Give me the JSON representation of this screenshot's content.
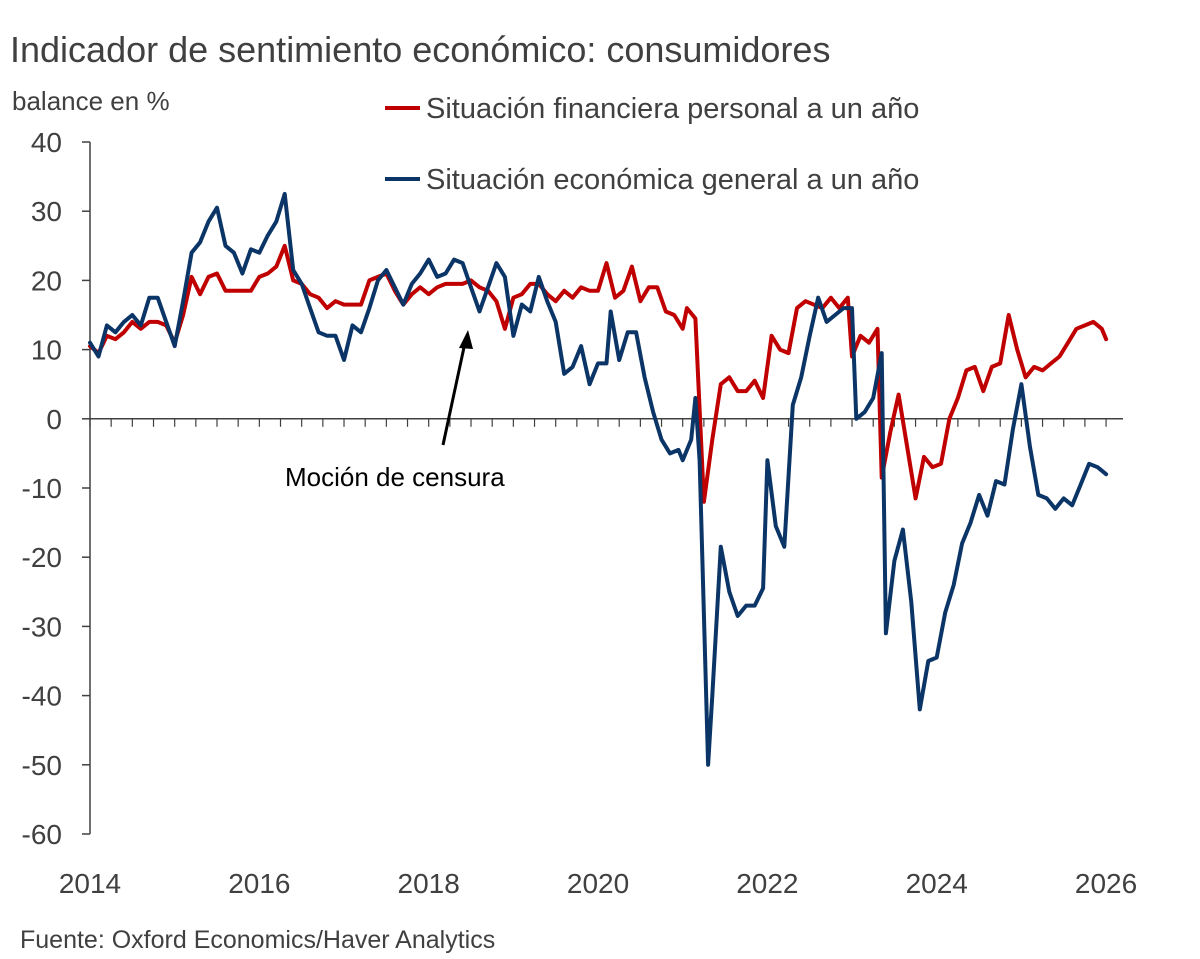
{
  "colors": {
    "series_red": "#c00000",
    "series_blue": "#0b3566",
    "axis": "#404040",
    "text": "#404040",
    "annotation": "#000000"
  },
  "chart_data": {
    "type": "line",
    "title": "Indicador de sentimiento económico: consumidores",
    "ylabel": "balance en %",
    "xlabel": "",
    "source": "Fuente: Oxford Economics/Haver Analytics",
    "ylim": [
      -60,
      40
    ],
    "yticks": [
      40,
      30,
      20,
      10,
      0,
      -10,
      -20,
      -30,
      -40,
      -50,
      -60
    ],
    "xlim": [
      2014,
      2026.2
    ],
    "xticks": [
      2014,
      2016,
      2018,
      2020,
      2022,
      2024,
      2026
    ],
    "legend_position": "top",
    "annotation": {
      "text": "Moción de censura",
      "x": 2018.4,
      "y": 12
    },
    "series": [
      {
        "name": "Situación financiera personal a un año",
        "color": "#c00000",
        "points": [
          [
            2014.0,
            10.5
          ],
          [
            2014.1,
            9.5
          ],
          [
            2014.2,
            12
          ],
          [
            2014.3,
            11.5
          ],
          [
            2014.4,
            12.5
          ],
          [
            2014.5,
            14
          ],
          [
            2014.6,
            13
          ],
          [
            2014.7,
            14
          ],
          [
            2014.8,
            14
          ],
          [
            2014.9,
            13.5
          ],
          [
            2015.0,
            11
          ],
          [
            2015.1,
            15
          ],
          [
            2015.2,
            20.5
          ],
          [
            2015.3,
            18
          ],
          [
            2015.4,
            20.5
          ],
          [
            2015.5,
            21
          ],
          [
            2015.6,
            18.5
          ],
          [
            2015.7,
            18.5
          ],
          [
            2015.8,
            18.5
          ],
          [
            2015.9,
            18.5
          ],
          [
            2016.0,
            20.5
          ],
          [
            2016.1,
            21
          ],
          [
            2016.2,
            22
          ],
          [
            2016.3,
            25
          ],
          [
            2016.4,
            20
          ],
          [
            2016.5,
            19.5
          ],
          [
            2016.6,
            18
          ],
          [
            2016.7,
            17.5
          ],
          [
            2016.8,
            16
          ],
          [
            2016.9,
            17
          ],
          [
            2017.0,
            16.5
          ],
          [
            2017.1,
            16.5
          ],
          [
            2017.2,
            16.5
          ],
          [
            2017.3,
            20
          ],
          [
            2017.4,
            20.5
          ],
          [
            2017.5,
            21
          ],
          [
            2017.6,
            18.5
          ],
          [
            2017.7,
            16.5
          ],
          [
            2017.8,
            18
          ],
          [
            2017.9,
            19
          ],
          [
            2018.0,
            18
          ],
          [
            2018.1,
            19
          ],
          [
            2018.2,
            19.5
          ],
          [
            2018.3,
            19.5
          ],
          [
            2018.4,
            19.5
          ],
          [
            2018.5,
            20
          ],
          [
            2018.6,
            19
          ],
          [
            2018.7,
            18.5
          ],
          [
            2018.8,
            17
          ],
          [
            2018.9,
            13
          ],
          [
            2019.0,
            17.5
          ],
          [
            2019.1,
            18
          ],
          [
            2019.2,
            19.5
          ],
          [
            2019.3,
            19.5
          ],
          [
            2019.4,
            18
          ],
          [
            2019.5,
            17
          ],
          [
            2019.6,
            18.5
          ],
          [
            2019.7,
            17.5
          ],
          [
            2019.8,
            19
          ],
          [
            2019.9,
            18.5
          ],
          [
            2020.0,
            18.5
          ],
          [
            2020.1,
            22.5
          ],
          [
            2020.2,
            17.5
          ],
          [
            2020.3,
            18.5
          ],
          [
            2020.4,
            22
          ],
          [
            2020.5,
            17
          ],
          [
            2020.6,
            19
          ],
          [
            2020.7,
            19
          ],
          [
            2020.8,
            15.5
          ],
          [
            2020.9,
            15
          ],
          [
            2021.0,
            13
          ],
          [
            2021.05,
            16
          ],
          [
            2021.15,
            14.5
          ],
          [
            2021.25,
            -12
          ],
          [
            2021.35,
            -3
          ],
          [
            2021.45,
            5
          ],
          [
            2021.55,
            6
          ],
          [
            2021.65,
            4
          ],
          [
            2021.75,
            4
          ],
          [
            2021.85,
            5.5
          ],
          [
            2021.95,
            3
          ],
          [
            2022.05,
            12
          ],
          [
            2022.15,
            10
          ],
          [
            2022.25,
            9.5
          ],
          [
            2022.35,
            16
          ],
          [
            2022.45,
            17
          ],
          [
            2022.55,
            16.5
          ],
          [
            2022.65,
            16
          ],
          [
            2022.75,
            17.5
          ],
          [
            2022.85,
            16
          ],
          [
            2022.95,
            17.5
          ],
          [
            2023.0,
            9
          ],
          [
            2023.1,
            12
          ],
          [
            2023.2,
            11
          ],
          [
            2023.3,
            13
          ],
          [
            2023.35,
            -8.5
          ],
          [
            2023.45,
            -2
          ],
          [
            2023.55,
            3.5
          ],
          [
            2023.65,
            -4
          ],
          [
            2023.75,
            -11.5
          ],
          [
            2023.85,
            -5.5
          ],
          [
            2023.95,
            -7
          ],
          [
            2024.05,
            -6.5
          ],
          [
            2024.15,
            0
          ],
          [
            2024.25,
            3
          ],
          [
            2024.35,
            7
          ],
          [
            2024.45,
            7.5
          ],
          [
            2024.55,
            4
          ],
          [
            2024.65,
            7.5
          ],
          [
            2024.75,
            8
          ],
          [
            2024.85,
            15
          ],
          [
            2024.95,
            10
          ],
          [
            2025.05,
            6
          ],
          [
            2025.15,
            7.5
          ],
          [
            2025.25,
            7
          ],
          [
            2025.35,
            8
          ],
          [
            2025.45,
            9
          ],
          [
            2025.55,
            11
          ],
          [
            2025.65,
            13
          ],
          [
            2025.75,
            13.5
          ],
          [
            2025.85,
            14
          ],
          [
            2025.95,
            13
          ],
          [
            2026.0,
            11.5
          ]
        ]
      },
      {
        "name": "Situación económica general a un año",
        "color": "#0b3566",
        "points": [
          [
            2014.0,
            11
          ],
          [
            2014.1,
            9
          ],
          [
            2014.2,
            13.5
          ],
          [
            2014.3,
            12.5
          ],
          [
            2014.4,
            14
          ],
          [
            2014.5,
            15
          ],
          [
            2014.6,
            13.5
          ],
          [
            2014.7,
            17.5
          ],
          [
            2014.8,
            17.5
          ],
          [
            2014.9,
            14
          ],
          [
            2015.0,
            10.5
          ],
          [
            2015.1,
            17
          ],
          [
            2015.2,
            24
          ],
          [
            2015.3,
            25.5
          ],
          [
            2015.4,
            28.5
          ],
          [
            2015.5,
            30.5
          ],
          [
            2015.6,
            25
          ],
          [
            2015.7,
            24
          ],
          [
            2015.8,
            21
          ],
          [
            2015.9,
            24.5
          ],
          [
            2016.0,
            24
          ],
          [
            2016.1,
            26.5
          ],
          [
            2016.2,
            28.5
          ],
          [
            2016.3,
            32.5
          ],
          [
            2016.4,
            21.5
          ],
          [
            2016.5,
            19.5
          ],
          [
            2016.6,
            16
          ],
          [
            2016.7,
            12.5
          ],
          [
            2016.8,
            12
          ],
          [
            2016.9,
            12
          ],
          [
            2017.0,
            8.5
          ],
          [
            2017.1,
            13.5
          ],
          [
            2017.2,
            12.5
          ],
          [
            2017.3,
            16
          ],
          [
            2017.4,
            20
          ],
          [
            2017.5,
            21.5
          ],
          [
            2017.6,
            19
          ],
          [
            2017.7,
            16.5
          ],
          [
            2017.8,
            19.5
          ],
          [
            2017.9,
            21
          ],
          [
            2018.0,
            23
          ],
          [
            2018.1,
            20.5
          ],
          [
            2018.2,
            21
          ],
          [
            2018.3,
            23
          ],
          [
            2018.4,
            22.5
          ],
          [
            2018.5,
            19
          ],
          [
            2018.6,
            15.5
          ],
          [
            2018.7,
            19
          ],
          [
            2018.8,
            22.5
          ],
          [
            2018.9,
            20.5
          ],
          [
            2019.0,
            12
          ],
          [
            2019.1,
            16.5
          ],
          [
            2019.2,
            15.5
          ],
          [
            2019.3,
            20.5
          ],
          [
            2019.4,
            17
          ],
          [
            2019.5,
            14
          ],
          [
            2019.6,
            6.5
          ],
          [
            2019.7,
            7.5
          ],
          [
            2019.8,
            10.5
          ],
          [
            2019.9,
            5
          ],
          [
            2020.0,
            8
          ],
          [
            2020.1,
            8
          ],
          [
            2020.15,
            15.5
          ],
          [
            2020.25,
            8.5
          ],
          [
            2020.35,
            12.5
          ],
          [
            2020.45,
            12.5
          ],
          [
            2020.55,
            6
          ],
          [
            2020.65,
            1
          ],
          [
            2020.75,
            -3
          ],
          [
            2020.85,
            -5
          ],
          [
            2020.95,
            -4.5
          ],
          [
            2021.0,
            -6
          ],
          [
            2021.1,
            -3
          ],
          [
            2021.15,
            3
          ],
          [
            2021.2,
            -6
          ],
          [
            2021.3,
            -50
          ],
          [
            2021.35,
            -40
          ],
          [
            2021.45,
            -18.5
          ],
          [
            2021.55,
            -25
          ],
          [
            2021.65,
            -28.5
          ],
          [
            2021.75,
            -27
          ],
          [
            2021.85,
            -27
          ],
          [
            2021.95,
            -24.5
          ],
          [
            2022.0,
            -6
          ],
          [
            2022.1,
            -15.5
          ],
          [
            2022.2,
            -18.5
          ],
          [
            2022.3,
            2
          ],
          [
            2022.4,
            6
          ],
          [
            2022.5,
            12
          ],
          [
            2022.6,
            17.5
          ],
          [
            2022.7,
            14
          ],
          [
            2022.8,
            15
          ],
          [
            2022.9,
            16
          ],
          [
            2023.0,
            16
          ],
          [
            2023.05,
            0
          ],
          [
            2023.15,
            1
          ],
          [
            2023.25,
            3
          ],
          [
            2023.35,
            9.5
          ],
          [
            2023.4,
            -31
          ],
          [
            2023.5,
            -20.5
          ],
          [
            2023.6,
            -16
          ],
          [
            2023.7,
            -26.5
          ],
          [
            2023.8,
            -42
          ],
          [
            2023.9,
            -35
          ],
          [
            2024.0,
            -34.5
          ],
          [
            2024.1,
            -28
          ],
          [
            2024.2,
            -24
          ],
          [
            2024.3,
            -18
          ],
          [
            2024.4,
            -15
          ],
          [
            2024.5,
            -11
          ],
          [
            2024.6,
            -14
          ],
          [
            2024.7,
            -9
          ],
          [
            2024.8,
            -9.5
          ],
          [
            2024.9,
            -1.5
          ],
          [
            2025.0,
            5
          ],
          [
            2025.1,
            -4
          ],
          [
            2025.2,
            -11
          ],
          [
            2025.3,
            -11.5
          ],
          [
            2025.4,
            -13
          ],
          [
            2025.5,
            -11.5
          ],
          [
            2025.6,
            -12.5
          ],
          [
            2025.7,
            -9.5
          ],
          [
            2025.8,
            -6.5
          ],
          [
            2025.9,
            -7
          ],
          [
            2026.0,
            -8
          ]
        ]
      }
    ]
  }
}
